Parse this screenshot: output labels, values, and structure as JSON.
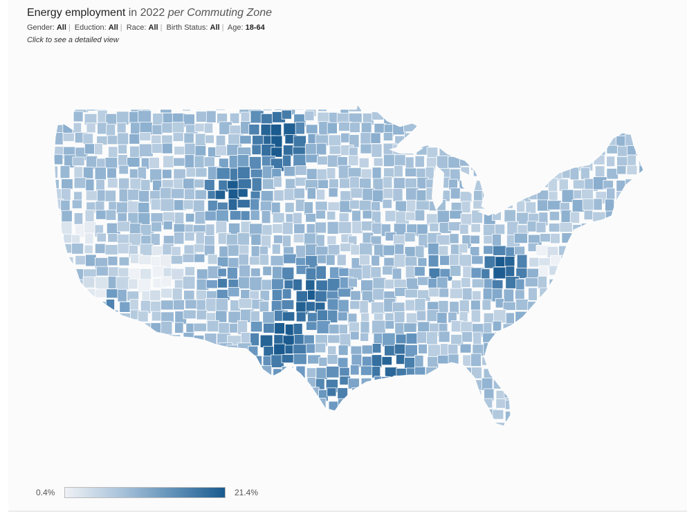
{
  "title": {
    "measure": "Energy employment",
    "in_year": "in 2022",
    "per_unit": "per Commuting Zone"
  },
  "filters": [
    {
      "label": "Gender:",
      "value": "All"
    },
    {
      "label": "Eduction:",
      "value": "All"
    },
    {
      "label": "Race:",
      "value": "All"
    },
    {
      "label": "Birth Status:",
      "value": "All"
    },
    {
      "label": "Age:",
      "value": "18-64"
    }
  ],
  "hint": "Click to see a detailed view",
  "legend": {
    "min": "0.4%",
    "max": "21.4%",
    "color_low": "#eef1f5",
    "color_high": "#1a5a8e"
  },
  "colors": {
    "background": "#fbfbfb",
    "zone_border": "#ffffff"
  }
}
